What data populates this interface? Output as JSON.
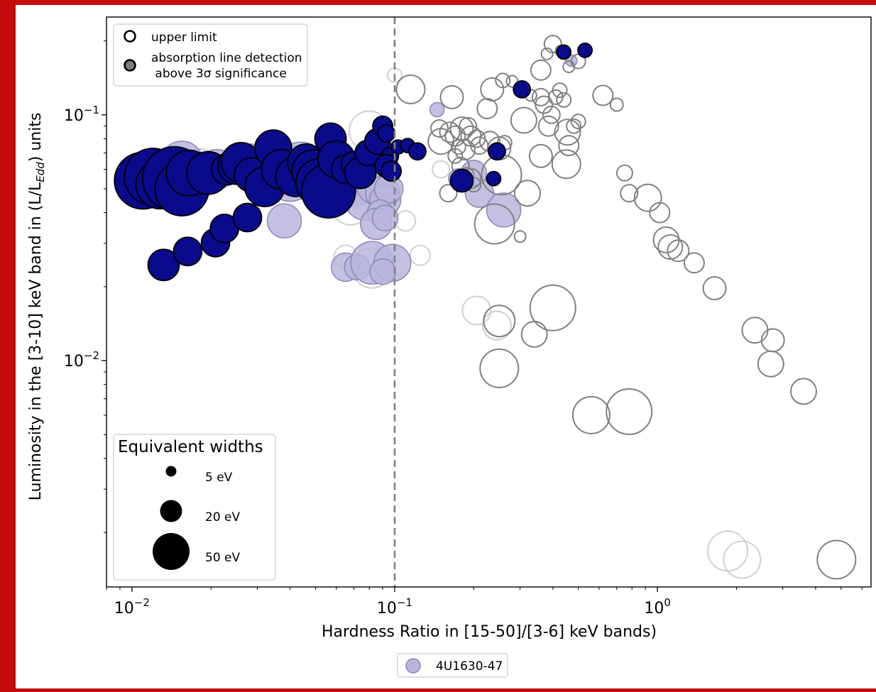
{
  "colors": {
    "detection_fill": "#0a0a8c",
    "detection_faint_fill": "#b8b5dc",
    "upper_limit_edge": "#808080",
    "upper_limit_faint_edge": "#d0d0d0",
    "threshold_line": "#808080"
  },
  "chart_data": {
    "type": "scatter",
    "title": "",
    "xlabel": "Hardness Ratio in [15-50]/[3-6] keV bands)",
    "ylabel_parts": [
      "Luminosity in the [3-10] keV band in (L/L",
      "Edd",
      ") units"
    ],
    "xscale": "log",
    "yscale": "log",
    "xlim": [
      0.008,
      6.5
    ],
    "ylim": [
      0.0012,
      0.25
    ],
    "xticks": [
      {
        "value": 0.01,
        "base": "10",
        "exp": "−2"
      },
      {
        "value": 0.1,
        "base": "10",
        "exp": "−1"
      },
      {
        "value": 1,
        "base": "10",
        "exp": "0"
      }
    ],
    "yticks": [
      {
        "value": 0.01,
        "base": "10",
        "exp": "−2"
      },
      {
        "value": 0.1,
        "base": "10",
        "exp": "−1"
      }
    ],
    "threshold_x": 0.1,
    "legend_markers": [
      {
        "label": "upper limit"
      },
      {
        "label_line1": "absorption line detection",
        "label_line2": " above 3σ significance"
      }
    ],
    "size_legend": {
      "title": "Equivalent widths",
      "entries": [
        {
          "label": "5 eV",
          "ew": 5
        },
        {
          "label": "20 eV",
          "ew": 20
        },
        {
          "label": "50 eV",
          "ew": 50
        }
      ]
    },
    "source_legend": "4U1630-47",
    "series": [
      {
        "name": "4U1630-47",
        "kind": "detection",
        "points": [
          [
            0.011,
            0.054,
            40
          ],
          [
            0.012,
            0.056,
            40
          ],
          [
            0.0128,
            0.052,
            34
          ],
          [
            0.0145,
            0.055,
            45
          ],
          [
            0.0155,
            0.05,
            38
          ],
          [
            0.0165,
            0.058,
            32
          ],
          [
            0.0195,
            0.058,
            30
          ],
          [
            0.023,
            0.06,
            22
          ],
          [
            0.025,
            0.062,
            26
          ],
          [
            0.026,
            0.064,
            28
          ],
          [
            0.0285,
            0.057,
            24
          ],
          [
            0.032,
            0.051,
            28
          ],
          [
            0.0345,
            0.073,
            26
          ],
          [
            0.037,
            0.06,
            28
          ],
          [
            0.042,
            0.056,
            28
          ],
          [
            0.046,
            0.064,
            26
          ],
          [
            0.049,
            0.059,
            30
          ],
          [
            0.052,
            0.053,
            34
          ],
          [
            0.056,
            0.049,
            38
          ],
          [
            0.057,
            0.08,
            22
          ],
          [
            0.06,
            0.066,
            26
          ],
          [
            0.065,
            0.06,
            20
          ],
          [
            0.07,
            0.063,
            18
          ],
          [
            0.074,
            0.058,
            22
          ],
          [
            0.079,
            0.07,
            18
          ],
          [
            0.086,
            0.078,
            18
          ],
          [
            0.09,
            0.09,
            14
          ],
          [
            0.093,
            0.084,
            12
          ],
          [
            0.096,
            0.068,
            12
          ],
          [
            0.103,
            0.074,
            10
          ],
          [
            0.112,
            0.075,
            10
          ],
          [
            0.122,
            0.071,
            12
          ],
          [
            0.093,
            0.062,
            16
          ],
          [
            0.097,
            0.059,
            14
          ],
          [
            0.0132,
            0.0245,
            22
          ],
          [
            0.0163,
            0.0278,
            20
          ],
          [
            0.0208,
            0.0302,
            20
          ],
          [
            0.0225,
            0.0345,
            20
          ],
          [
            0.0275,
            0.0382,
            20
          ],
          [
            0.18,
            0.054,
            16
          ],
          [
            0.238,
            0.055,
            10
          ],
          [
            0.245,
            0.071,
            12
          ],
          [
            0.305,
            0.127,
            12
          ],
          [
            0.44,
            0.18,
            10
          ],
          [
            0.53,
            0.183,
            10
          ]
        ]
      },
      {
        "name": "4U1630-47",
        "kind": "detection_faint",
        "points": [
          [
            0.013,
            0.06,
            28
          ],
          [
            0.0155,
            0.064,
            30
          ],
          [
            0.021,
            0.06,
            28
          ],
          [
            0.028,
            0.065,
            24
          ],
          [
            0.031,
            0.06,
            26
          ],
          [
            0.04,
            0.055,
            32
          ],
          [
            0.044,
            0.061,
            36
          ],
          [
            0.048,
            0.057,
            34
          ],
          [
            0.062,
            0.052,
            30
          ],
          [
            0.07,
            0.054,
            36
          ],
          [
            0.078,
            0.046,
            32
          ],
          [
            0.085,
            0.052,
            28
          ],
          [
            0.09,
            0.048,
            24
          ],
          [
            0.092,
            0.045,
            22
          ],
          [
            0.095,
            0.05,
            20
          ],
          [
            0.088,
            0.04,
            18
          ],
          [
            0.085,
            0.036,
            22
          ],
          [
            0.092,
            0.038,
            18
          ],
          [
            0.038,
            0.037,
            24
          ],
          [
            0.065,
            0.024,
            20
          ],
          [
            0.072,
            0.024,
            18
          ],
          [
            0.082,
            0.025,
            30
          ],
          [
            0.098,
            0.025,
            26
          ],
          [
            0.09,
            0.023,
            18
          ],
          [
            0.145,
            0.105,
            10
          ],
          [
            0.21,
            0.048,
            20
          ],
          [
            0.26,
            0.041,
            24
          ],
          [
            0.175,
            0.055,
            14
          ],
          [
            0.2,
            0.058,
            18
          ],
          [
            0.47,
            0.166,
            8
          ]
        ]
      },
      {
        "name": "upper limit",
        "kind": "upper_limit",
        "points": [
          [
            0.115,
            0.127,
            20
          ],
          [
            0.165,
            0.118,
            16
          ],
          [
            0.148,
            0.088,
            12
          ],
          [
            0.15,
            0.078,
            18
          ],
          [
            0.162,
            0.085,
            14
          ],
          [
            0.17,
            0.082,
            14
          ],
          [
            0.18,
            0.088,
            16
          ],
          [
            0.19,
            0.09,
            12
          ],
          [
            0.195,
            0.082,
            14
          ],
          [
            0.205,
            0.08,
            12
          ],
          [
            0.175,
            0.074,
            10
          ],
          [
            0.185,
            0.072,
            14
          ],
          [
            0.17,
            0.068,
            10
          ],
          [
            0.178,
            0.062,
            12
          ],
          [
            0.188,
            0.057,
            10
          ],
          [
            0.195,
            0.055,
            14
          ],
          [
            0.21,
            0.075,
            12
          ],
          [
            0.23,
            0.078,
            14
          ],
          [
            0.25,
            0.073,
            16
          ],
          [
            0.262,
            0.077,
            10
          ],
          [
            0.225,
            0.106,
            14
          ],
          [
            0.235,
            0.127,
            16
          ],
          [
            0.258,
            0.138,
            10
          ],
          [
            0.28,
            0.137,
            8
          ],
          [
            0.16,
            0.048,
            12
          ],
          [
            0.2,
            0.052,
            10
          ],
          [
            0.255,
            0.057,
            28
          ],
          [
            0.24,
            0.036,
            28
          ],
          [
            0.32,
            0.048,
            18
          ],
          [
            0.3,
            0.032,
            8
          ],
          [
            0.31,
            0.095,
            18
          ],
          [
            0.33,
            0.12,
            8
          ],
          [
            0.36,
            0.118,
            12
          ],
          [
            0.37,
            0.11,
            12
          ],
          [
            0.385,
            0.09,
            14
          ],
          [
            0.395,
            0.1,
            12
          ],
          [
            0.41,
            0.118,
            10
          ],
          [
            0.425,
            0.126,
            10
          ],
          [
            0.44,
            0.115,
            10
          ],
          [
            0.455,
            0.085,
            18
          ],
          [
            0.46,
            0.075,
            14
          ],
          [
            0.48,
            0.09,
            10
          ],
          [
            0.5,
            0.094,
            10
          ],
          [
            0.36,
            0.068,
            16
          ],
          [
            0.45,
            0.063,
            20
          ],
          [
            0.36,
            0.152,
            14
          ],
          [
            0.38,
            0.177,
            8
          ],
          [
            0.4,
            0.194,
            12
          ],
          [
            0.43,
            0.182,
            8
          ],
          [
            0.46,
            0.157,
            8
          ],
          [
            0.5,
            0.165,
            10
          ],
          [
            0.62,
            0.12,
            14
          ],
          [
            0.7,
            0.11,
            9
          ],
          [
            0.75,
            0.058,
            11
          ],
          [
            0.78,
            0.048,
            12
          ],
          [
            0.92,
            0.046,
            19
          ],
          [
            1.02,
            0.04,
            14
          ],
          [
            1.08,
            0.031,
            18
          ],
          [
            1.12,
            0.029,
            17
          ],
          [
            1.2,
            0.028,
            15
          ],
          [
            1.38,
            0.025,
            14
          ],
          [
            1.65,
            0.0197,
            16
          ],
          [
            2.35,
            0.0133,
            18
          ],
          [
            2.75,
            0.0121,
            16
          ],
          [
            2.7,
            0.0097,
            18
          ],
          [
            3.6,
            0.0075,
            18
          ],
          [
            0.25,
            0.0145,
            22
          ],
          [
            0.34,
            0.0128,
            18
          ],
          [
            0.4,
            0.0164,
            32
          ],
          [
            0.25,
            0.0093,
            27
          ],
          [
            0.56,
            0.006,
            26
          ],
          [
            0.78,
            0.0062,
            32
          ],
          [
            4.8,
            0.00155,
            27
          ]
        ]
      },
      {
        "name": "upper limit",
        "kind": "upper_limit_faint",
        "points": [
          [
            0.018,
            0.058,
            34
          ],
          [
            0.035,
            0.079,
            14
          ],
          [
            0.05,
            0.058,
            22
          ],
          [
            0.08,
            0.086,
            28
          ],
          [
            0.088,
            0.072,
            18
          ],
          [
            0.078,
            0.052,
            36
          ],
          [
            0.068,
            0.043,
            28
          ],
          [
            0.1,
            0.145,
            10
          ],
          [
            0.11,
            0.037,
            14
          ],
          [
            0.065,
            0.0265,
            16
          ],
          [
            0.082,
            0.0238,
            28
          ],
          [
            0.125,
            0.0268,
            14
          ],
          [
            0.15,
            0.06,
            12
          ],
          [
            0.205,
            0.016,
            20
          ],
          [
            0.245,
            0.0139,
            20
          ],
          [
            1.85,
            0.00168,
            28
          ],
          [
            2.1,
            0.00155,
            26
          ]
        ]
      }
    ]
  }
}
